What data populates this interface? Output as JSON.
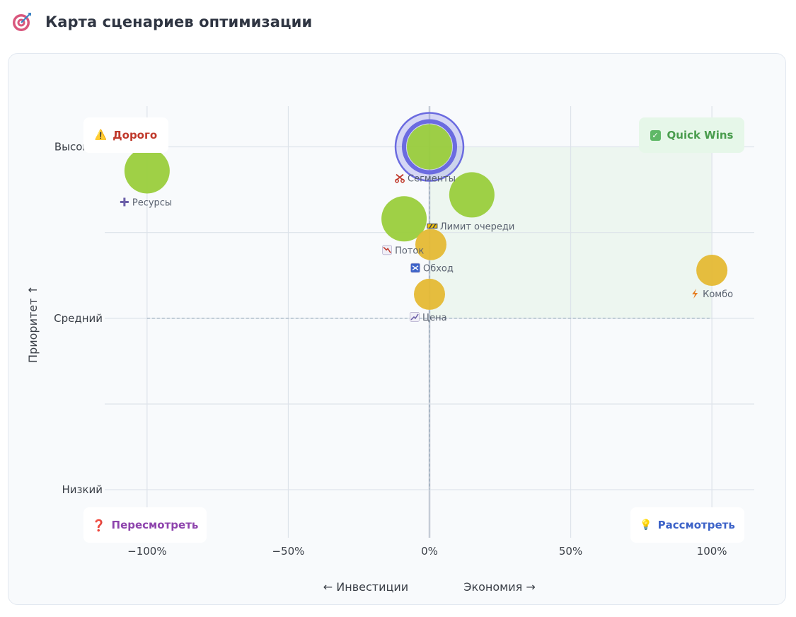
{
  "header": {
    "title": "Карта сценариев оптимизации",
    "icon": "target-dart-icon"
  },
  "quadrants": {
    "top_left": {
      "label": "Дорого",
      "icon": "warning-icon",
      "color": "#c0392b"
    },
    "top_right": {
      "label": "Quick Wins",
      "icon": "checkbox-check-icon",
      "color": "#4a9d4e"
    },
    "bottom_left": {
      "label": "Пересмотреть",
      "icon": "question-icon",
      "color": "#8e44ad"
    },
    "bottom_right": {
      "label": "Рассмотреть",
      "icon": "lightbulb-icon",
      "color": "#3d63c8"
    }
  },
  "chart_data": {
    "type": "scatter",
    "title": "Карта сценариев оптимизации",
    "xlabel_left": "← Инвестиции",
    "xlabel_right": "Экономия →",
    "ylabel": "Приоритет ↑",
    "x_ticks": [
      {
        "value": -100,
        "label": "−100%"
      },
      {
        "value": -50,
        "label": "−50%"
      },
      {
        "value": 0,
        "label": "0%"
      },
      {
        "value": 50,
        "label": "50%"
      },
      {
        "value": 100,
        "label": "100%"
      }
    ],
    "y_ticks": [
      {
        "value": 3,
        "label": "Высокий"
      },
      {
        "value": 2,
        "label": "Средний"
      },
      {
        "value": 1,
        "label": "Низкий"
      }
    ],
    "xlim": [
      -115,
      115
    ],
    "ylim": [
      0.72,
      3.32
    ],
    "colors": {
      "green": "#9acd3c",
      "yellow": "#e5b934",
      "selected": "#6b6be0",
      "quickwin_zone": "#e3f3e5"
    },
    "points": [
      {
        "name": "Ресурсы",
        "icon": "plus-icon",
        "icon_color": "#6b5fa8",
        "x": -100,
        "y": 2.86,
        "color": "green",
        "label_pos": "below"
      },
      {
        "name": "Сегменты",
        "icon": "scissors-icon",
        "icon_color": "#c0392b",
        "x": 0,
        "y": 3.0,
        "color": "green",
        "selected": true,
        "label_pos": "below"
      },
      {
        "name": "Лимит очереди",
        "icon": "barrier-icon",
        "icon_color": "#444444",
        "x": 15,
        "y": 2.72,
        "color": "green",
        "label_pos": "below"
      },
      {
        "name": "Поток",
        "icon": "chart-down-icon",
        "icon_color": "#c0392b",
        "x": -9,
        "y": 2.58,
        "color": "green",
        "label_pos": "below"
      },
      {
        "name": "Обход",
        "icon": "shuffle-icon",
        "icon_color": "#3d63c8",
        "x": 0.5,
        "y": 2.43,
        "color": "yellow",
        "label_pos": "below"
      },
      {
        "name": "Цена",
        "icon": "chart-up-icon",
        "icon_color": "#6b5fa8",
        "x": 0,
        "y": 2.14,
        "color": "yellow",
        "label_pos": "below"
      },
      {
        "name": "Комбо",
        "icon": "lightning-icon",
        "icon_color": "#e67e22",
        "x": 100,
        "y": 2.28,
        "color": "yellow",
        "label_pos": "below"
      }
    ]
  }
}
